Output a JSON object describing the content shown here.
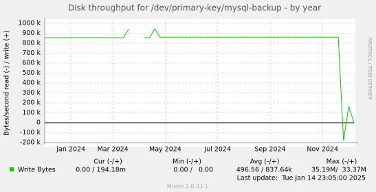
{
  "chart_data": {
    "type": "line",
    "title": "Disk throughput for /dev/primary-key/mysql-backup - by year",
    "y_label": "Bytes/second read (-) / write (+)",
    "side_label": "RRDTOOL / TOBI OETIKER",
    "categories": [
      null,
      null,
      null,
      null,
      null,
      "Jan 2024",
      null,
      null,
      null,
      null,
      null,
      null,
      null,
      "Mar 2024",
      null,
      null,
      null,
      null,
      null,
      null,
      null,
      null,
      null,
      "May 2024",
      null,
      null,
      null,
      null,
      null,
      null,
      null,
      null,
      null,
      "Jul 2024",
      null,
      null,
      null,
      null,
      null,
      null,
      null,
      null,
      null,
      "Sep 2024",
      null,
      null,
      null,
      null,
      null,
      null,
      null,
      null,
      null,
      "Nov 2024",
      null,
      null,
      null,
      null,
      null,
      null
    ],
    "series": [
      {
        "name": "Write Bytes",
        "color": "#00cc00",
        "values": [
          855000,
          855000,
          855000,
          855000,
          855000,
          855000,
          855000,
          855000,
          855000,
          855000,
          855000,
          855000,
          855000,
          855000,
          855000,
          855000,
          940000,
          null,
          null,
          855000,
          855000,
          945000,
          860000,
          860000,
          860000,
          860000,
          860000,
          860000,
          860000,
          860000,
          860000,
          860000,
          860000,
          860000,
          860000,
          860000,
          860000,
          860000,
          860000,
          860000,
          860000,
          860000,
          860000,
          860000,
          860000,
          860000,
          860000,
          860000,
          860000,
          860000,
          860000,
          860000,
          860000,
          860000,
          860000,
          860000,
          860000,
          -180000,
          165000,
          0
        ]
      }
    ],
    "ylim": [
      -200000,
      1000000
    ],
    "yticks": [
      {
        "value": -200000,
        "label": "-200 k"
      },
      {
        "value": -100000,
        "label": "-100 k"
      },
      0,
      {
        "value": 100000,
        "label": "100 k"
      },
      {
        "value": 200000,
        "label": "200 k"
      },
      {
        "value": 300000,
        "label": "300 k"
      },
      {
        "value": 400000,
        "label": "400 k"
      },
      {
        "value": 500000,
        "label": "500 k"
      },
      {
        "value": 600000,
        "label": "600 k"
      },
      {
        "value": 700000,
        "label": "700 k"
      },
      {
        "value": 800000,
        "label": "800 k"
      },
      {
        "value": 900000,
        "label": "900 k"
      },
      {
        "value": 1000000,
        "label": "1000 k"
      }
    ],
    "grid": true,
    "legend_table": {
      "headers": [
        "Cur (-/+)",
        "Min (-/+)",
        "Avg (-/+)",
        "Max (-/+)"
      ],
      "row": [
        "0.00 / 194.18m",
        "0.00 /   0.00",
        "496.56 / 837.64k",
        "35.19M/  33.37M"
      ]
    },
    "last_update": "Last update:  Tue Jan 14 23:05:00 2025",
    "footer": "Munin 2.0.33-1"
  }
}
